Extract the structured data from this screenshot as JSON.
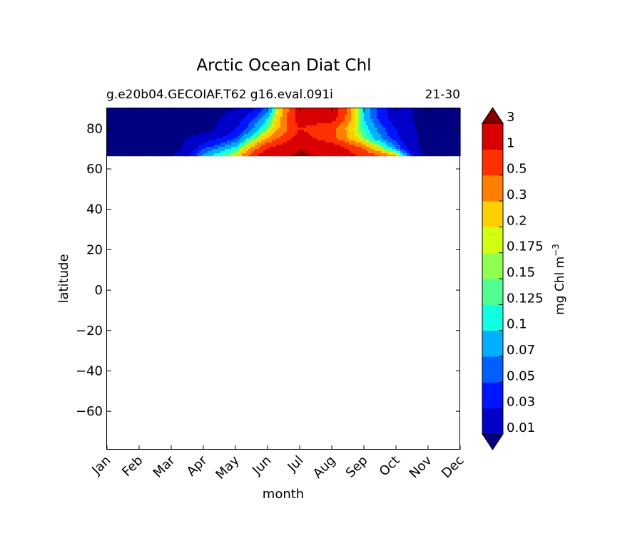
{
  "chart_data": {
    "type": "heatmap",
    "title": "Arctic Ocean Diat Chl",
    "subtitle_left": "g.e20b04.GECOIAF.T62 g16.eval.091i",
    "subtitle_right": "21-30",
    "xlabel": "month",
    "ylabel": "latitude",
    "x_categories": [
      "Jan",
      "Feb",
      "Mar",
      "Apr",
      "May",
      "Jun",
      "Jul",
      "Aug",
      "Sep",
      "Oct",
      "Nov",
      "Dec"
    ],
    "ylim": [
      -79,
      90
    ],
    "y_ticks": [
      -60,
      -40,
      -20,
      0,
      20,
      40,
      60,
      80
    ],
    "data_lat_range": [
      66.5,
      90
    ],
    "colorbar": {
      "label": "mg Chl m",
      "label_exponent": "−3",
      "levels": [
        "0.01",
        "0.03",
        "0.05",
        "0.07",
        "0.1",
        "0.125",
        "0.15",
        "0.175",
        "0.2",
        "0.3",
        "0.5",
        "1",
        "3"
      ],
      "colors": [
        "#000080",
        "#0000c8",
        "#0015ff",
        "#0060ff",
        "#00b0ff",
        "#10ffe0",
        "#50ff90",
        "#90ff50",
        "#d0ff10",
        "#ffd000",
        "#ff8000",
        "#ff3000",
        "#d80000",
        "#800000"
      ],
      "extend": "both"
    },
    "latitudes": [
      66.5,
      70,
      75,
      80,
      85,
      90
    ],
    "values_by_month": [
      [
        0.005,
        0.005,
        0.005,
        0.005,
        0.005,
        0.005
      ],
      [
        0.005,
        0.005,
        0.005,
        0.005,
        0.005,
        0.005
      ],
      [
        0.01,
        0.005,
        0.005,
        0.005,
        0.005,
        0.005
      ],
      [
        0.08,
        0.05,
        0.02,
        0.005,
        0.005,
        0.005
      ],
      [
        0.2,
        0.12,
        0.05,
        0.03,
        0.02,
        0.01
      ],
      [
        2.0,
        1.0,
        0.3,
        0.15,
        0.1,
        0.06
      ],
      [
        3.5,
        3.0,
        1.5,
        1.0,
        1.5,
        1.5
      ],
      [
        2.5,
        2.0,
        0.6,
        0.6,
        1.5,
        2.0
      ],
      [
        0.8,
        0.5,
        0.15,
        0.12,
        0.1,
        0.1
      ],
      [
        0.3,
        0.08,
        0.04,
        0.03,
        0.02,
        0.02
      ],
      [
        0.005,
        0.005,
        0.005,
        0.005,
        0.005,
        0.005
      ],
      [
        0.005,
        0.005,
        0.005,
        0.005,
        0.005,
        0.005
      ]
    ],
    "grid": false,
    "legend": "none"
  }
}
